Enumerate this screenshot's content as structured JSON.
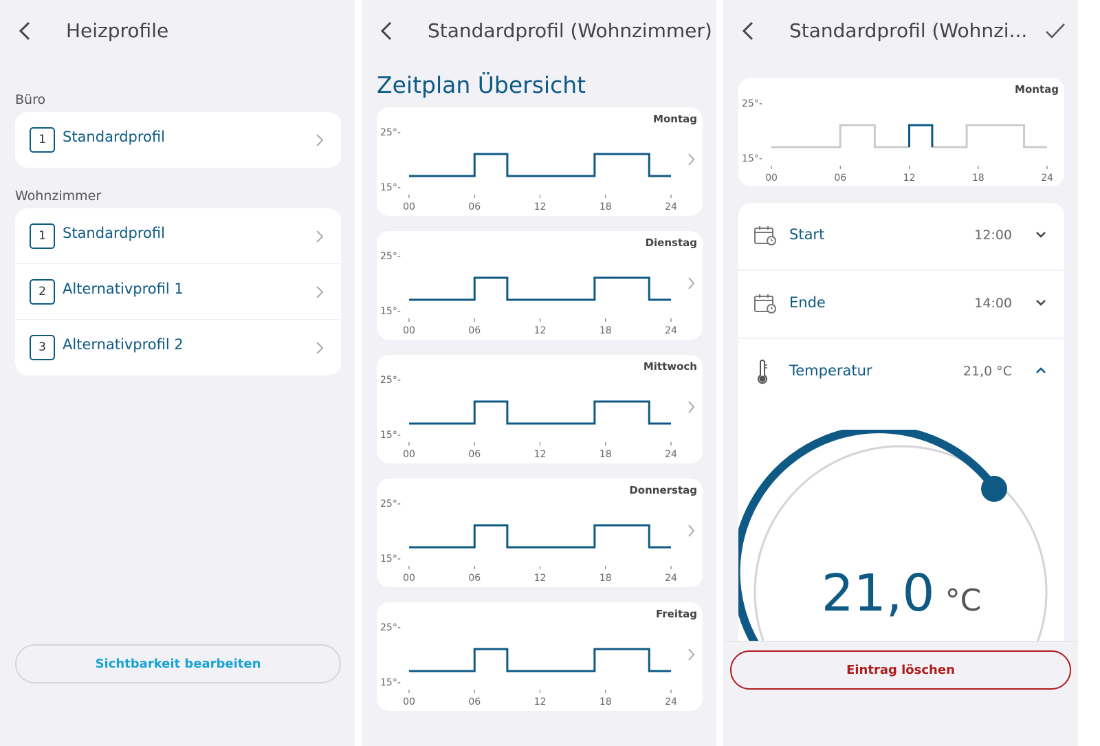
{
  "panel1": {
    "title": "Heizprofile",
    "groups": [
      {
        "name": "Büro",
        "items": [
          {
            "num": "1",
            "label": "Standardprofil"
          }
        ]
      },
      {
        "name": "Wohnzimmer",
        "items": [
          {
            "num": "1",
            "label": "Standardprofil"
          },
          {
            "num": "2",
            "label": "Alternativprofil 1"
          },
          {
            "num": "3",
            "label": "Alternativprofil 2"
          }
        ]
      }
    ],
    "button": "Sichtbarkeit bearbeiten"
  },
  "panel2": {
    "title": "Standardprofil (Wohnzimmer)",
    "heading": "Zeitplan Übersicht",
    "days": [
      "Montag",
      "Dienstag",
      "Mittwoch",
      "Donnerstag",
      "Freitag"
    ]
  },
  "panel3": {
    "title": "Standardprofil (Wohnzi...",
    "day": "Montag",
    "start": {
      "label": "Start",
      "value": "12:00"
    },
    "end": {
      "label": "Ende",
      "value": "14:00"
    },
    "temp": {
      "label": "Temperatur",
      "value": "21,0 °C"
    },
    "dial": {
      "value": "21,0",
      "unit": "°C",
      "fraction": 0.55
    },
    "delete": "Eintrag löschen"
  },
  "chart_data": {
    "type": "line",
    "y_ticks": [
      "25°-",
      "15°-"
    ],
    "x_ticks": [
      "00",
      "06",
      "12",
      "18",
      "24"
    ],
    "ylim": [
      15,
      25
    ],
    "schedule": [
      [
        0,
        17
      ],
      [
        6,
        17
      ],
      [
        6,
        21
      ],
      [
        9,
        21
      ],
      [
        9,
        17
      ],
      [
        17,
        17
      ],
      [
        17,
        21
      ],
      [
        22,
        21
      ],
      [
        22,
        17
      ],
      [
        24,
        17
      ]
    ],
    "monday_schedule": [
      [
        0,
        17
      ],
      [
        6,
        17
      ],
      [
        6,
        21
      ],
      [
        9,
        21
      ],
      [
        9,
        17
      ],
      [
        12,
        17
      ],
      [
        12,
        21
      ],
      [
        14,
        21
      ],
      [
        14,
        17
      ],
      [
        17,
        17
      ],
      [
        17,
        21
      ],
      [
        22,
        21
      ],
      [
        22,
        17
      ],
      [
        24,
        17
      ]
    ],
    "selected_segment": [
      12,
      14
    ]
  },
  "colors": {
    "accent": "#0e5a85",
    "link": "#1aa3d4",
    "danger": "#b01c1c"
  }
}
